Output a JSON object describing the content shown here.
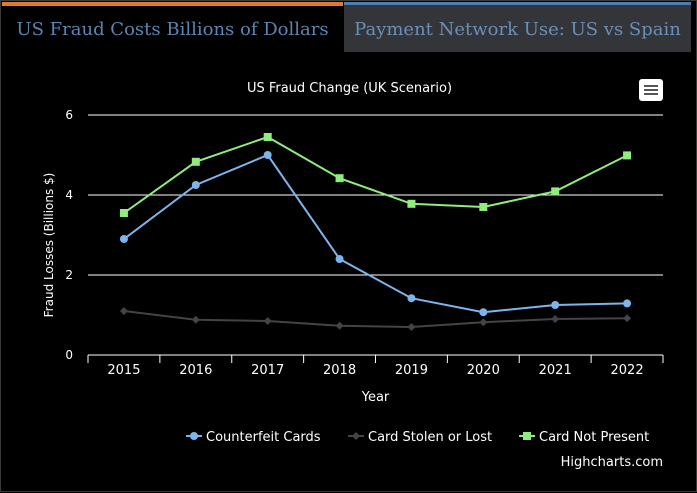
{
  "tabs": [
    {
      "label": "US Fraud Costs Billions of Dollars"
    },
    {
      "label": "Payment Network Use: US vs Spain"
    }
  ],
  "menu": {
    "icon": "hamburger-menu-icon"
  },
  "credit": "Highcharts.com",
  "colors": {
    "background": "#000000",
    "counterfeit": "#7cb5ec",
    "stolen": "#434348",
    "cnp": "#90ed7d",
    "grid": "#ffffff"
  },
  "chart_data": {
    "type": "line",
    "title": "US Fraud Change (UK Scenario)",
    "xlabel": "Year",
    "ylabel": "Fraud Losses (Billions $)",
    "categories": [
      "2015",
      "2016",
      "2017",
      "2018",
      "2019",
      "2020",
      "2021",
      "2022"
    ],
    "yticks": [
      "0",
      "2",
      "4",
      "6"
    ],
    "ylim": [
      0,
      6
    ],
    "grid": true,
    "legend_position": "bottom-right",
    "series": [
      {
        "name": "Counterfeit Cards",
        "marker": "circle",
        "values": [
          2.9,
          4.25,
          5.0,
          2.4,
          1.42,
          1.07,
          1.25,
          1.29
        ]
      },
      {
        "name": "Card Stolen or Lost",
        "marker": "diamond",
        "values": [
          1.1,
          0.88,
          0.85,
          0.73,
          0.7,
          0.82,
          0.9,
          0.92
        ]
      },
      {
        "name": "Card Not Present",
        "marker": "square",
        "values": [
          3.55,
          4.83,
          5.45,
          4.42,
          3.78,
          3.7,
          4.09,
          4.99
        ]
      }
    ]
  }
}
